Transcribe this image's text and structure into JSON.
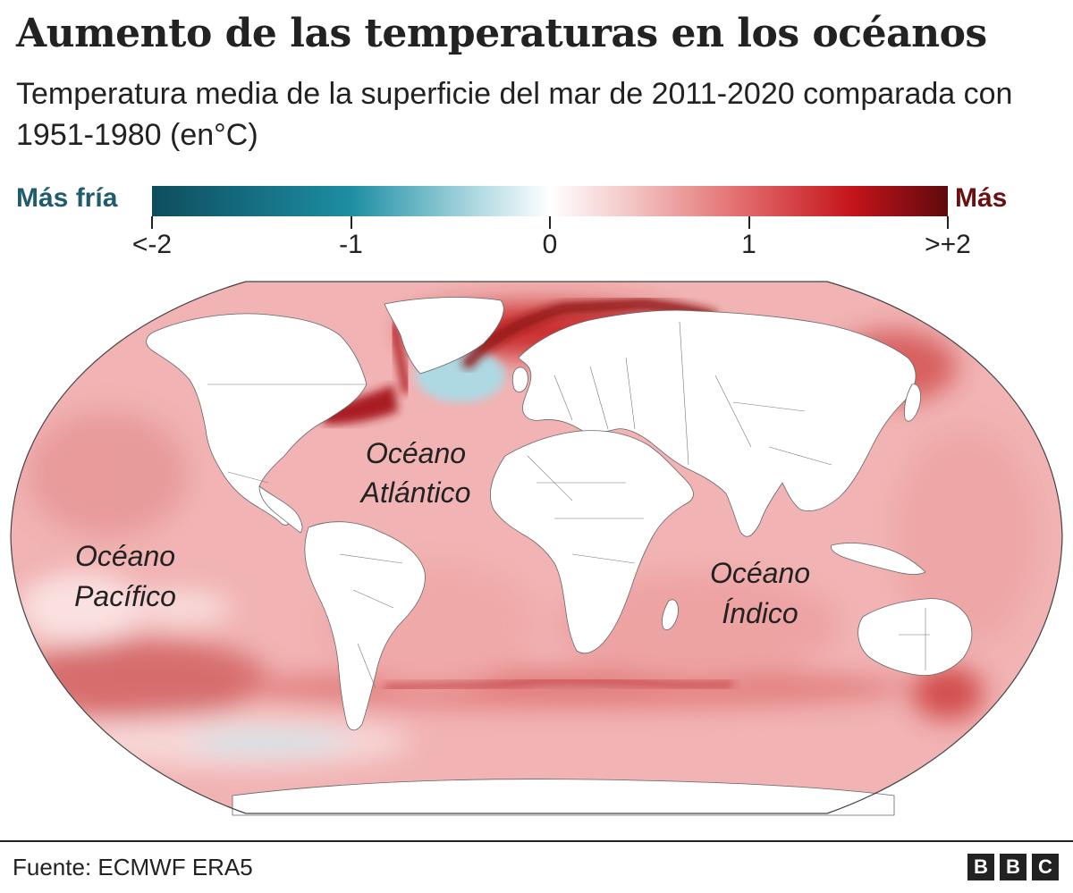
{
  "header": {
    "title": "Aumento de las temperaturas en los océanos",
    "subtitle": "Temperatura media de la superficie del mar de 2011-2020 comparada con 1951-1980 (en°C)"
  },
  "legend": {
    "cold_label": "Más fría",
    "warm_label": "Más",
    "cold_color": "#1f5c6e",
    "warm_color": "#6b0f12",
    "stops": [
      "#0e4d5e",
      "#1d8ea3",
      "#a8d6df",
      "#ffffff",
      "#f4c6c6",
      "#e06666",
      "#c4141b",
      "#5e0a0d"
    ],
    "ticks": [
      {
        "value": -2,
        "label": "<-2"
      },
      {
        "value": -1,
        "label": "-1"
      },
      {
        "value": 0,
        "label": "0"
      },
      {
        "value": 1,
        "label": "1"
      },
      {
        "value": 2,
        "label": ">+2"
      }
    ]
  },
  "map": {
    "projection": "Robinson",
    "land_color": "#ffffff",
    "border_color": "#444444",
    "ocean_base_color": "#f1b3b3",
    "labels": {
      "atlantic_line1": "Océano",
      "atlantic_line2": "Atlántico",
      "pacific_line1": "Océano",
      "pacific_line2": "Pacífico",
      "indian_line1": "Océano",
      "indian_line2": "Índico"
    }
  },
  "footer": {
    "source": "Fuente: ECMWF ERA5",
    "logo_letters": [
      "B",
      "B",
      "C"
    ]
  }
}
